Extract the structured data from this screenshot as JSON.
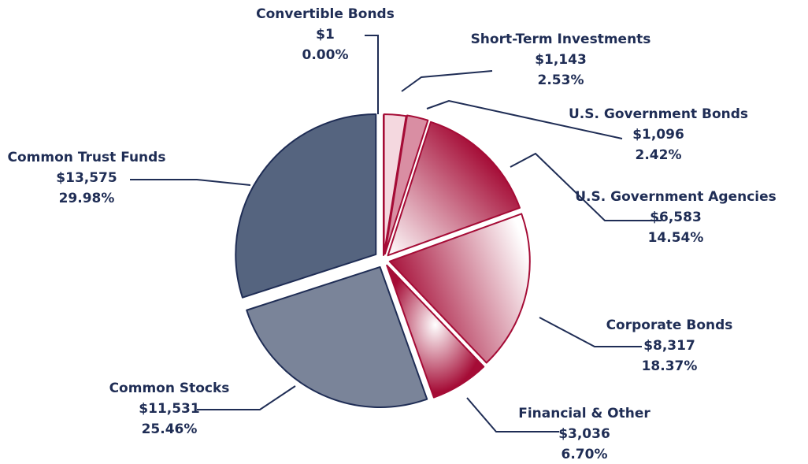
{
  "chart_data": {
    "type": "pie",
    "categories": [
      "Convertible Bonds",
      "Short-Term Investments",
      "U.S. Government Bonds",
      "U.S. Government Agencies",
      "Corporate Bonds",
      "Financial & Other",
      "Common Stocks",
      "Common Trust Funds"
    ],
    "amount_labels": [
      "$1",
      "$1,143",
      "$1,096",
      "$6,583",
      "$8,317",
      "$3,036",
      "$11,531",
      "$13,575"
    ],
    "values": [
      0.0,
      2.53,
      2.42,
      14.54,
      18.37,
      6.7,
      25.46,
      29.98
    ],
    "value_labels": [
      "0.00%",
      "2.53%",
      "2.42%",
      "14.54%",
      "18.37%",
      "6.70%",
      "25.46%",
      "29.98%"
    ],
    "colors": [
      "#f4d8df",
      "#f4d8df",
      "#d98ea3",
      "url(#gAg)",
      "url(#gCorp)",
      "url(#gFin)",
      "#7a8499",
      "#55647f"
    ]
  }
}
